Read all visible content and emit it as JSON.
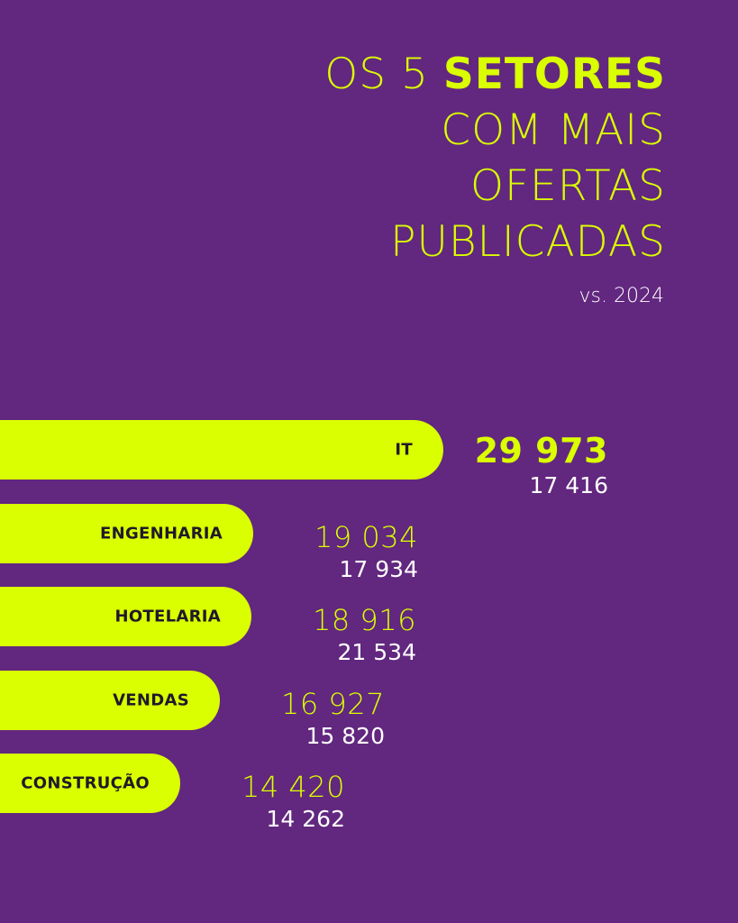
{
  "title": {
    "line1_prefix": "OS 5 ",
    "line1_strong": "SETORES",
    "line2": "COM MAIS",
    "line3": "OFERTAS",
    "line4": "PUBLICADAS"
  },
  "subtitle": "vs. 2024",
  "colors": {
    "background": "#62277f",
    "accent": "#daff00",
    "text_light": "#ffffff",
    "label_dark": "#1e1a2a"
  },
  "chart_data": {
    "type": "bar",
    "orientation": "horizontal",
    "categories": [
      "IT",
      "ENGENHARIA",
      "HOTELARIA",
      "VENDAS",
      "CONSTRUÇÃO"
    ],
    "series": [
      {
        "values": [
          29973,
          19034,
          18916,
          16927,
          14420
        ],
        "labels": [
          "29 973",
          "19 034",
          "18 916",
          "16 927",
          "14 420"
        ]
      },
      {
        "values": [
          17416,
          17934,
          21534,
          15820,
          14262
        ],
        "labels": [
          "17 416",
          "17 934",
          "21 534",
          "15 820",
          "14 262"
        ]
      }
    ],
    "title": "OS 5 SETORES COM MAIS OFERTAS PUBLICADAS",
    "subtitle": "vs. 2024",
    "grid": false,
    "legend": "none"
  }
}
